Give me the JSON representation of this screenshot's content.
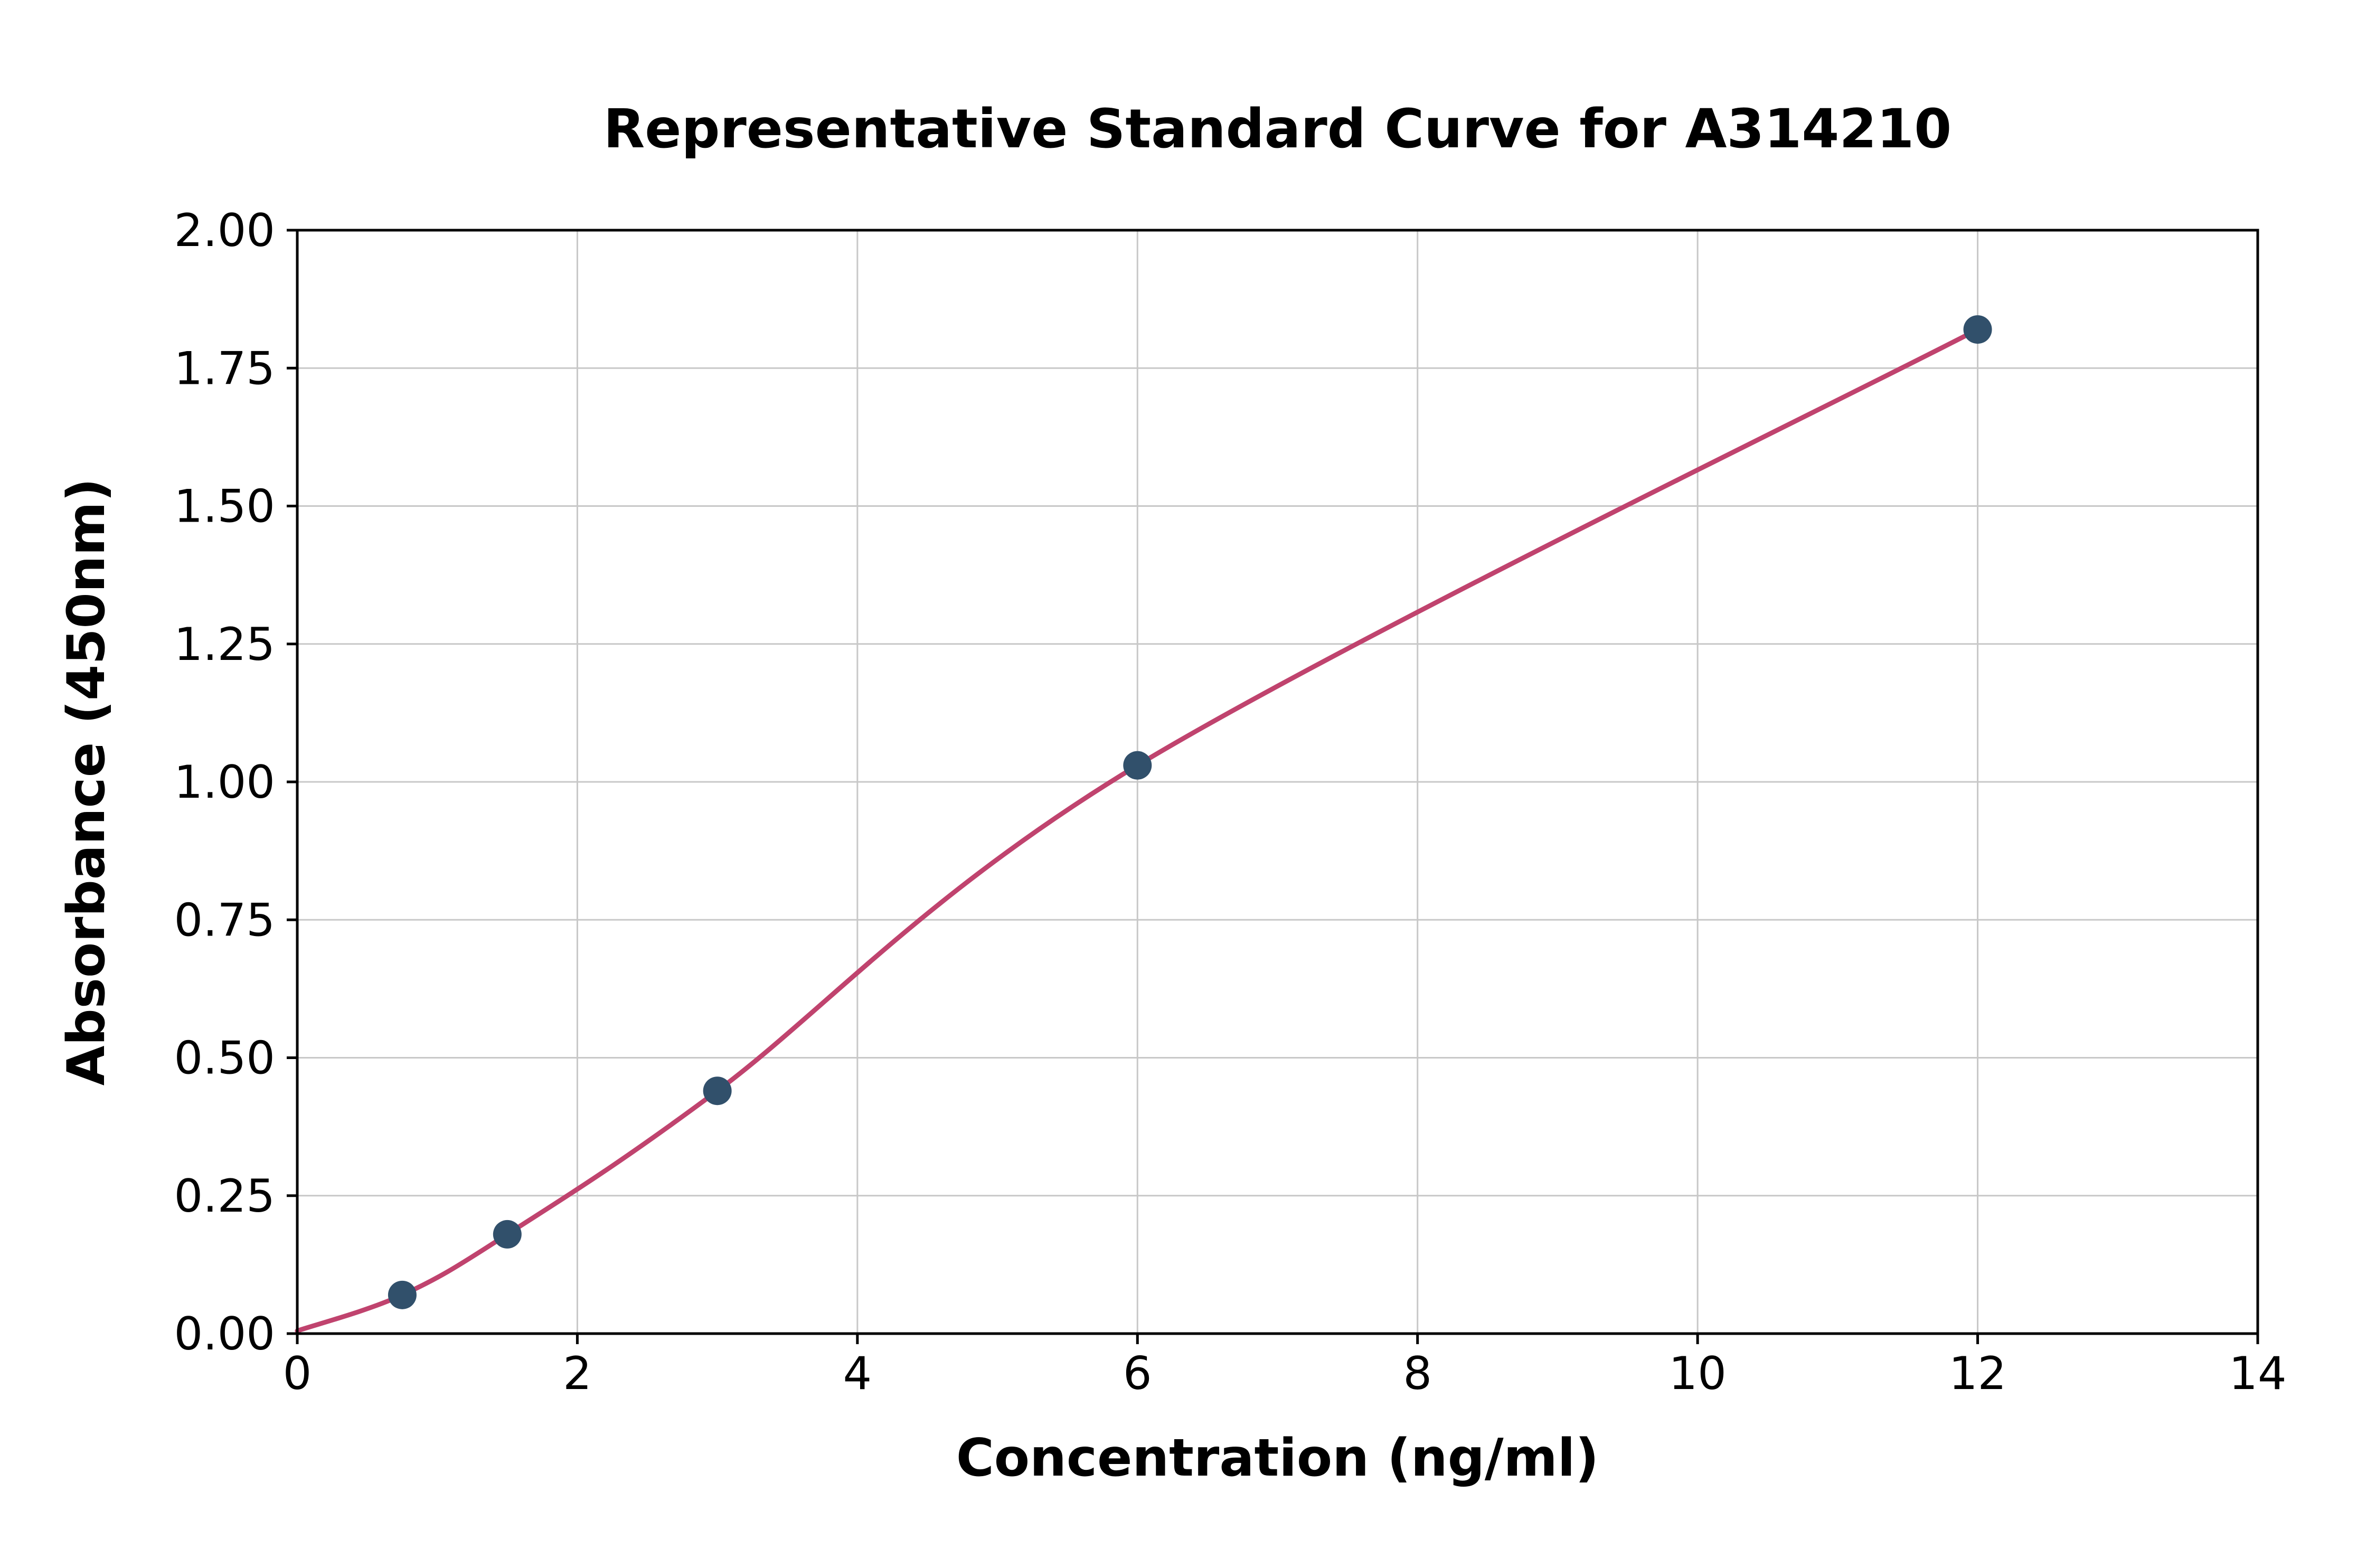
{
  "chart_data": {
    "type": "scatter",
    "title": "Representative Standard Curve for A314210",
    "xlabel": "Concentration (ng/ml)",
    "ylabel": "Absorbance (450nm)",
    "xlim": [
      0,
      14
    ],
    "ylim": [
      0,
      2.0
    ],
    "xticks": [
      0,
      2,
      4,
      6,
      8,
      10,
      12,
      14
    ],
    "xtick_labels": [
      "0",
      "2",
      "4",
      "6",
      "8",
      "10",
      "12",
      "14"
    ],
    "yticks": [
      0,
      0.25,
      0.5,
      0.75,
      1.0,
      1.25,
      1.5,
      1.75,
      2.0
    ],
    "ytick_labels": [
      "0.00",
      "0.25",
      "0.50",
      "0.75",
      "1.00",
      "1.25",
      "1.50",
      "1.75",
      "2.00"
    ],
    "grid": true,
    "legend": "none",
    "series": [
      {
        "name": "standards",
        "style": "scatter",
        "x": [
          0.75,
          1.5,
          3,
          6,
          12
        ],
        "y": [
          0.07,
          0.18,
          0.44,
          1.03,
          1.82
        ]
      },
      {
        "name": "fit-curve",
        "style": "line",
        "x": [
          0,
          0.75,
          1.5,
          3,
          6,
          12
        ],
        "y": [
          0.005,
          0.07,
          0.18,
          0.44,
          1.03,
          1.82
        ]
      }
    ],
    "colors": {
      "curve": "#c0436e",
      "points": "#31506b",
      "grid": "#c8c8c8",
      "axis": "#000000",
      "background": "#ffffff"
    }
  }
}
